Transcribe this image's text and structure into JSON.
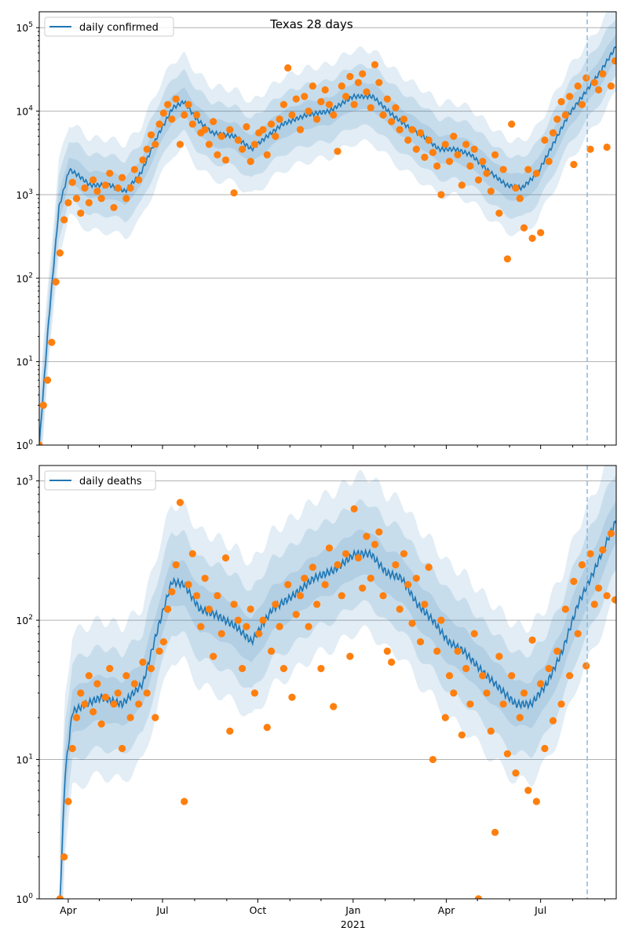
{
  "figure": {
    "title": "Texas 28 days"
  },
  "chart_data": [
    {
      "type": "line+scatter",
      "name": "confirmed",
      "legend": "daily confirmed",
      "legend_placement": "top-left",
      "yscale": "log",
      "ylim": [
        1,
        155000
      ],
      "yticks": [
        {
          "v": 1,
          "label": "10",
          "exp": "0"
        },
        {
          "v": 10,
          "label": "10",
          "exp": "1"
        },
        {
          "v": 100,
          "label": "10",
          "exp": "2"
        },
        {
          "v": 1000,
          "label": "10",
          "exp": "3"
        },
        {
          "v": 10000,
          "label": "10",
          "exp": "4"
        },
        {
          "v": 100000,
          "label": "10",
          "exp": "5"
        }
      ],
      "grid": "y-major",
      "x_origin": "2020-03-04",
      "x_unit": "days since 2020-03-04",
      "xlim": [
        0,
        557
      ],
      "forecast_marker_day": 529,
      "band_factors": [
        1.45,
        2.3,
        3.6
      ],
      "trend": [
        [
          0,
          1
        ],
        [
          9,
          30
        ],
        [
          19,
          700
        ],
        [
          29,
          2000
        ],
        [
          38,
          1700
        ],
        [
          49,
          1300
        ],
        [
          68,
          1300
        ],
        [
          83,
          1100
        ],
        [
          98,
          1800
        ],
        [
          114,
          5000
        ],
        [
          129,
          11000
        ],
        [
          140,
          13000
        ],
        [
          152,
          8000
        ],
        [
          167,
          5500
        ],
        [
          189,
          5000
        ],
        [
          205,
          3500
        ],
        [
          220,
          5000
        ],
        [
          235,
          7000
        ],
        [
          258,
          9000
        ],
        [
          280,
          10000
        ],
        [
          303,
          15000
        ],
        [
          322,
          15000
        ],
        [
          341,
          9000
        ],
        [
          356,
          6500
        ],
        [
          371,
          5000
        ],
        [
          386,
          3500
        ],
        [
          402,
          3500
        ],
        [
          417,
          3000
        ],
        [
          432,
          2000
        ],
        [
          451,
          1300
        ],
        [
          466,
          1200
        ],
        [
          481,
          1800
        ],
        [
          496,
          4000
        ],
        [
          511,
          9000
        ],
        [
          529,
          18000
        ],
        [
          542,
          30000
        ],
        [
          557,
          60000
        ]
      ],
      "scatter_start": 0,
      "scatter_step": 4,
      "scatter": [
        1,
        3,
        6,
        17,
        90,
        200,
        500,
        800,
        1400,
        900,
        600,
        1200,
        800,
        1500,
        1100,
        900,
        1300,
        1800,
        700,
        1200,
        1600,
        900,
        1200,
        2000,
        1500,
        2600,
        3500,
        5200,
        4000,
        7000,
        9500,
        12000,
        8000,
        14000,
        4000,
        9000,
        12000,
        7000,
        9000,
        5500,
        6000,
        4000,
        7500,
        3000,
        5000,
        2600,
        6000,
        1050,
        4500,
        3500,
        6500,
        2500,
        4000,
        5500,
        6000,
        3000,
        7000,
        5000,
        8000,
        12000,
        33000,
        9000,
        14000,
        6000,
        15000,
        10000,
        20000,
        8000,
        13000,
        18000,
        12000,
        9000,
        3300,
        20000,
        15000,
        26000,
        12000,
        22000,
        28000,
        17000,
        11000,
        36000,
        22000,
        9000,
        14000,
        7500,
        11000,
        6000,
        8000,
        4500,
        6000,
        3500,
        5500,
        2800,
        4500,
        3200,
        2200,
        1000,
        4000,
        2500,
        5000,
        3000,
        1300,
        4000,
        2200,
        3500,
        1500,
        2500,
        1800,
        1100,
        3000,
        600,
        2000,
        170,
        7000,
        1200,
        900,
        400,
        2000,
        300,
        1800,
        350,
        4500,
        2500,
        5500,
        8000,
        13000,
        9000,
        15000,
        2300,
        20000,
        12000,
        25000,
        3500,
        22000,
        18000,
        28000,
        3700,
        20000,
        40000
      ]
    },
    {
      "type": "line+scatter",
      "name": "deaths",
      "legend": "daily deaths",
      "legend_placement": "top-left",
      "yscale": "log",
      "ylim": [
        1,
        1290
      ],
      "yticks": [
        {
          "v": 1,
          "label": "10",
          "exp": "0"
        },
        {
          "v": 10,
          "label": "10",
          "exp": "1"
        },
        {
          "v": 100,
          "label": "10",
          "exp": "2"
        },
        {
          "v": 1000,
          "label": "10",
          "exp": "3"
        }
      ],
      "grid": "y-major",
      "x_origin": "2020-03-04",
      "x_unit": "days since 2020-03-04",
      "xlim": [
        0,
        557
      ],
      "forecast_marker_day": 529,
      "band_factors": [
        1.45,
        2.3,
        3.6
      ],
      "xticks": [
        {
          "date": "2020-04-01",
          "label": "Apr"
        },
        {
          "date": "2020-07-01",
          "label": "Jul"
        },
        {
          "date": "2020-10-01",
          "label": "Oct"
        },
        {
          "date": "2021-01-01",
          "label": "Jan",
          "sublabel": "2021"
        },
        {
          "date": "2021-04-01",
          "label": "Apr"
        },
        {
          "date": "2021-07-01",
          "label": "Jul"
        }
      ],
      "trend": [
        [
          20,
          1
        ],
        [
          25,
          8
        ],
        [
          32,
          22
        ],
        [
          45,
          25
        ],
        [
          60,
          28
        ],
        [
          80,
          25
        ],
        [
          100,
          35
        ],
        [
          115,
          90
        ],
        [
          128,
          190
        ],
        [
          140,
          180
        ],
        [
          155,
          120
        ],
        [
          170,
          110
        ],
        [
          190,
          90
        ],
        [
          205,
          70
        ],
        [
          225,
          120
        ],
        [
          245,
          150
        ],
        [
          265,
          200
        ],
        [
          285,
          230
        ],
        [
          305,
          300
        ],
        [
          320,
          300
        ],
        [
          335,
          220
        ],
        [
          350,
          200
        ],
        [
          365,
          130
        ],
        [
          380,
          100
        ],
        [
          395,
          70
        ],
        [
          410,
          60
        ],
        [
          425,
          45
        ],
        [
          440,
          35
        ],
        [
          460,
          25
        ],
        [
          475,
          25
        ],
        [
          490,
          35
        ],
        [
          505,
          60
        ],
        [
          520,
          130
        ],
        [
          535,
          220
        ],
        [
          550,
          400
        ],
        [
          557,
          520
        ]
      ],
      "scatter_start": 20,
      "scatter_step": 4,
      "scatter": [
        1,
        2,
        5,
        12,
        20,
        30,
        25,
        40,
        22,
        35,
        18,
        28,
        45,
        25,
        30,
        12,
        40,
        20,
        35,
        25,
        50,
        30,
        45,
        20,
        60,
        70,
        120,
        160,
        250,
        700,
        5,
        180,
        300,
        150,
        90,
        200,
        120,
        55,
        150,
        80,
        280,
        16,
        130,
        100,
        45,
        90,
        120,
        30,
        80,
        100,
        17,
        60,
        130,
        90,
        45,
        180,
        28,
        110,
        150,
        200,
        90,
        240,
        130,
        45,
        180,
        330,
        24,
        250,
        150,
        300,
        55,
        630,
        280,
        170,
        400,
        200,
        350,
        430,
        150,
        60,
        50,
        250,
        120,
        300,
        180,
        95,
        200,
        70,
        130,
        240,
        10,
        60,
        100,
        20,
        40,
        30,
        60,
        15,
        45,
        25,
        80,
        1,
        40,
        30,
        16,
        3,
        55,
        25,
        11,
        40,
        8,
        20,
        30,
        6,
        72,
        5,
        35,
        12,
        45,
        19,
        60,
        25,
        120,
        40,
        190,
        80,
        250,
        47,
        300,
        130,
        170,
        320,
        150,
        420,
        140
      ]
    }
  ],
  "colors": {
    "line": "#1f77b4",
    "points": "#ff7f0e",
    "band": "#1f77b4",
    "grid": "#b0b0b0",
    "marker": "#8ab8dc"
  }
}
